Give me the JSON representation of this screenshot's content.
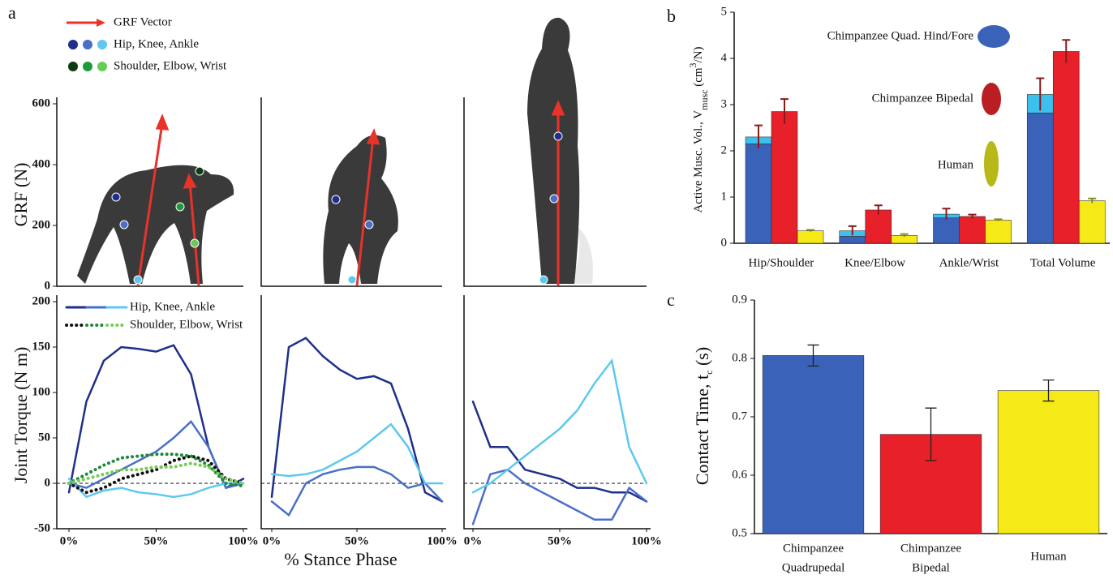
{
  "panel_labels": [
    "a",
    "b",
    "c"
  ],
  "chart_data": [
    {
      "type": "figure",
      "ylabel": "GRF (N)",
      "ylim": [
        0,
        600
      ],
      "yticks": [
        0,
        200,
        400,
        600
      ],
      "legend": [
        {
          "name": "GRF Vector",
          "color": "#e8322a"
        },
        {
          "name": "Hip, Knee, Ankle",
          "colors": [
            "#1f2f8a",
            "#4a6fc8",
            "#5ec8ee"
          ]
        },
        {
          "name": "Shoulder, Elbow, Wrist",
          "colors": [
            "#0d3b12",
            "#1f9a3a",
            "#66cc55"
          ]
        }
      ]
    },
    {
      "type": "line",
      "ylabel": "Joint Torque (N m)",
      "xlabel": "% Stance Phase",
      "ylim": [
        -50,
        200
      ],
      "yticks": [
        -50,
        0,
        50,
        100,
        150,
        200
      ],
      "xlim": [
        0,
        100
      ],
      "xticks": [
        {
          "value": 0,
          "label": "0%"
        },
        {
          "value": 50,
          "label": "50%"
        },
        {
          "value": 100,
          "label": "100%"
        }
      ],
      "legend": [
        {
          "name": "Hip, Knee, Ankle",
          "colors": [
            "#1f2f8a",
            "#4a6fc8",
            "#5ec8ee"
          ],
          "dash": "solid"
        },
        {
          "name": "Shoulder, Elbow, Wrist",
          "colors": [
            "#111111",
            "#1f8a3a",
            "#77cc55"
          ],
          "dash": "dotted"
        }
      ],
      "x": [
        0,
        10,
        20,
        30,
        40,
        50,
        60,
        70,
        80,
        90,
        100
      ],
      "panels": [
        {
          "series": [
            {
              "color": "#1f2f8a",
              "dash": "solid",
              "values": [
                -10,
                90,
                135,
                150,
                148,
                145,
                152,
                120,
                40,
                -5,
                5
              ]
            },
            {
              "color": "#4a6fc8",
              "dash": "solid",
              "values": [
                0,
                -5,
                5,
                15,
                25,
                35,
                50,
                68,
                40,
                -5,
                0
              ]
            },
            {
              "color": "#5ec8ee",
              "dash": "solid",
              "values": [
                5,
                -15,
                -8,
                -5,
                -10,
                -12,
                -15,
                -12,
                -5,
                0,
                0
              ]
            },
            {
              "color": "#111111",
              "dash": "dotted",
              "values": [
                0,
                -10,
                -5,
                5,
                10,
                15,
                25,
                30,
                25,
                5,
                0
              ]
            },
            {
              "color": "#1f8a3a",
              "dash": "dotted",
              "values": [
                0,
                10,
                20,
                28,
                30,
                32,
                32,
                30,
                20,
                0,
                -3
              ]
            },
            {
              "color": "#77cc55",
              "dash": "dotted",
              "values": [
                0,
                5,
                10,
                15,
                15,
                18,
                18,
                22,
                18,
                5,
                0
              ]
            }
          ]
        },
        {
          "series": [
            {
              "color": "#1f2f8a",
              "dash": "solid",
              "values": [
                -15,
                150,
                160,
                140,
                125,
                115,
                118,
                110,
                60,
                -10,
                -20
              ]
            },
            {
              "color": "#4a6fc8",
              "dash": "solid",
              "values": [
                -20,
                -35,
                0,
                10,
                15,
                18,
                18,
                10,
                -5,
                0,
                -20
              ]
            },
            {
              "color": "#5ec8ee",
              "dash": "solid",
              "values": [
                10,
                8,
                10,
                15,
                25,
                35,
                50,
                65,
                40,
                0,
                0
              ]
            }
          ]
        },
        {
          "series": [
            {
              "color": "#1f2f8a",
              "dash": "solid",
              "values": [
                90,
                40,
                40,
                15,
                10,
                5,
                -5,
                -5,
                -10,
                -10,
                -20
              ]
            },
            {
              "color": "#4a6fc8",
              "dash": "solid",
              "values": [
                -45,
                10,
                15,
                0,
                -10,
                -20,
                -30,
                -40,
                -40,
                -5,
                -20
              ]
            },
            {
              "color": "#5ec8ee",
              "dash": "solid",
              "values": [
                -10,
                0,
                15,
                30,
                45,
                60,
                80,
                110,
                135,
                40,
                0
              ]
            }
          ]
        }
      ]
    },
    {
      "type": "bar",
      "ylabel": [
        {
          "text": "Active Musc. Vol., V"
        },
        {
          "text": "musc",
          "script": "sub"
        },
        {
          "text": " (cm"
        },
        {
          "text": "3",
          "script": "sup"
        },
        {
          "text": "/N)"
        }
      ],
      "categories": [
        "Hip/Shoulder",
        "Knee/Elbow",
        "Ankle/Wrist",
        "Total Volume"
      ],
      "ylim": [
        0,
        5
      ],
      "yticks": [
        0,
        1,
        2,
        3,
        4,
        5
      ],
      "series": [
        {
          "name": "Chimpanzee Quad. Hind/Fore",
          "color": "#3a62b8",
          "values": [
            2.15,
            0.15,
            0.55,
            2.82
          ]
        },
        {
          "color": "#3cc0ee",
          "stack": true,
          "values": [
            0.15,
            0.12,
            0.08,
            0.4
          ],
          "errors": [
            0.25,
            0.1,
            0.12,
            0.35
          ]
        },
        {
          "name": "Chimpanzee Bipedal",
          "color": "#e8202a",
          "values": [
            2.85,
            0.72,
            0.58,
            4.15
          ],
          "errors": [
            0.27,
            0.1,
            0.04,
            0.25
          ]
        },
        {
          "name": "Human",
          "color": "#f5ea18",
          "values": [
            0.27,
            0.17,
            0.5,
            0.92
          ],
          "errors": [
            0.02,
            0.03,
            0.02,
            0.05
          ]
        }
      ]
    },
    {
      "type": "bar",
      "ylabel": [
        {
          "text": "Contact Time, t"
        },
        {
          "text": "c",
          "script": "sub"
        },
        {
          "text": " (s)"
        }
      ],
      "categories": [
        [
          "Chimpanzee",
          "Quadrupedal"
        ],
        [
          "Chimpanzee",
          "Bipedal"
        ],
        [
          "Human"
        ]
      ],
      "ylim": [
        0.5,
        0.9
      ],
      "yticks": [
        0.5,
        0.6,
        0.7,
        0.8,
        0.9
      ],
      "colors": [
        "#3a62b8",
        "#e8202a",
        "#f5ea18"
      ],
      "values": [
        0.805,
        0.67,
        0.745
      ],
      "errors": [
        0.018,
        0.045,
        0.018
      ]
    }
  ]
}
